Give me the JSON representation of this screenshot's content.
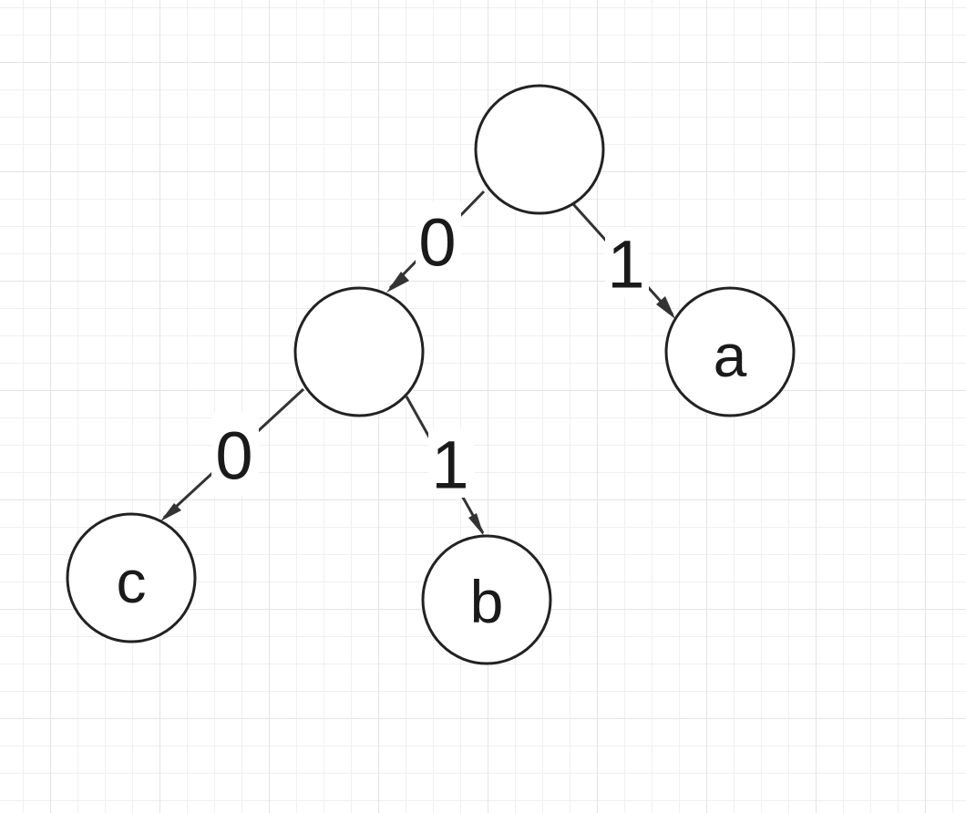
{
  "diagram": {
    "nodes": [
      {
        "id": "root",
        "label": ""
      },
      {
        "id": "left",
        "label": ""
      },
      {
        "id": "a",
        "label": "a"
      },
      {
        "id": "c",
        "label": "c"
      },
      {
        "id": "b",
        "label": "b"
      }
    ],
    "edges": [
      {
        "from": "root",
        "to": "left",
        "label": "0"
      },
      {
        "from": "root",
        "to": "a",
        "label": "1"
      },
      {
        "from": "left",
        "to": "c",
        "label": "0"
      },
      {
        "from": "left",
        "to": "b",
        "label": "1"
      }
    ]
  }
}
